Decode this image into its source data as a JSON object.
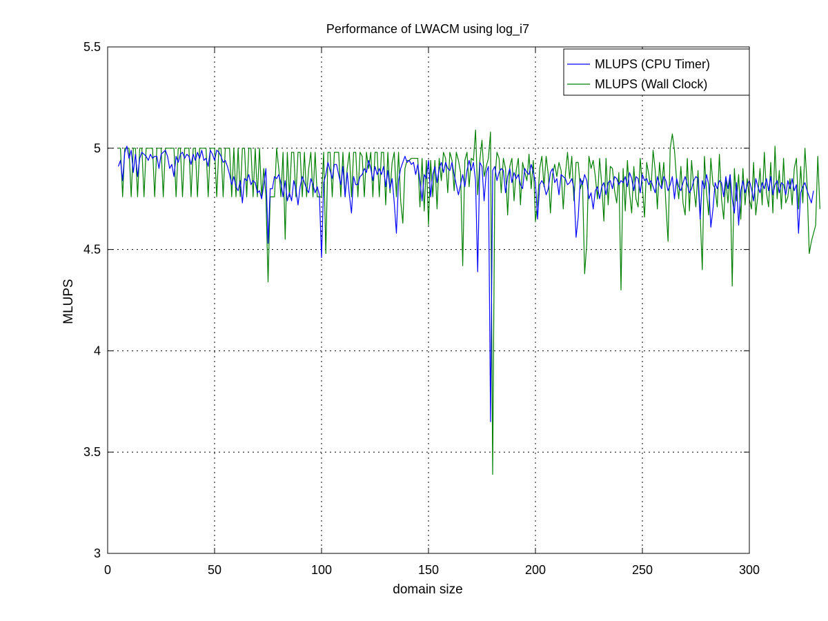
{
  "chart_data": {
    "type": "line",
    "title": "Performance of LWACM using log_i7",
    "xlabel": "domain size",
    "ylabel": "MLUPS",
    "xlim": [
      0,
      300
    ],
    "ylim": [
      3,
      5.5
    ],
    "x_ticks": [
      0,
      50,
      100,
      150,
      200,
      250,
      300
    ],
    "y_ticks": [
      3,
      3.5,
      4,
      4.5,
      5,
      5.5
    ],
    "x_tick_labels": [
      "0",
      "50",
      "100",
      "150",
      "200",
      "250",
      "300"
    ],
    "y_tick_labels": [
      "3",
      "3.5",
      "4",
      "4.5",
      "5",
      "5.5"
    ],
    "grid": true,
    "legend_position": "top-right",
    "x_start": 5,
    "x_step": 1,
    "series": [
      {
        "name": "MLUPS (CPU Timer)",
        "color": "#0000ff",
        "values": [
          4.91,
          4.94,
          4.84,
          4.98,
          5.01,
          4.95,
          4.99,
          4.88,
          4.97,
          4.86,
          4.95,
          4.98,
          4.97,
          4.96,
          4.94,
          4.97,
          4.95,
          4.96,
          4.96,
          4.9,
          4.97,
          4.98,
          4.99,
          4.96,
          4.9,
          4.92,
          4.86,
          4.96,
          4.93,
          4.97,
          4.98,
          4.95,
          4.97,
          4.96,
          4.92,
          4.97,
          4.94,
          4.98,
          4.95,
          4.99,
          4.94,
          4.95,
          4.91,
          4.99,
          4.97,
          4.94,
          4.99,
          4.98,
          4.96,
          4.93,
          4.94,
          4.91,
          4.87,
          4.82,
          4.86,
          4.81,
          4.79,
          4.84,
          4.73,
          4.85,
          4.84,
          4.87,
          4.82,
          4.84,
          4.83,
          4.78,
          4.79,
          4.75,
          4.82,
          4.9,
          4.53,
          4.8,
          4.8,
          4.86,
          4.85,
          4.87,
          4.83,
          4.76,
          4.84,
          4.74,
          4.78,
          4.74,
          4.84,
          4.8,
          4.72,
          4.81,
          4.86,
          4.83,
          4.8,
          4.78,
          4.85,
          4.82,
          4.78,
          4.81,
          4.77,
          4.46,
          4.83,
          4.87,
          4.93,
          4.89,
          4.85,
          4.92,
          4.92,
          4.87,
          4.82,
          4.91,
          4.76,
          4.88,
          4.77,
          4.68,
          4.86,
          4.82,
          4.82,
          4.86,
          4.87,
          4.9,
          4.88,
          4.94,
          4.9,
          4.84,
          4.91,
          4.87,
          4.9,
          4.87,
          4.91,
          4.81,
          4.89,
          4.8,
          4.85,
          4.73,
          4.58,
          4.84,
          4.9,
          4.93,
          4.96,
          4.93,
          4.94,
          4.92,
          4.93,
          4.87,
          4.92,
          4.84,
          4.74,
          4.87,
          4.85,
          4.94,
          4.76,
          4.87,
          4.91,
          4.83,
          4.9,
          4.93,
          4.88,
          4.93,
          4.9,
          4.89,
          4.93,
          4.87,
          4.82,
          4.77,
          4.82,
          4.87,
          4.81,
          4.89,
          4.94,
          4.89,
          4.93,
          4.84,
          4.39,
          4.93,
          4.91,
          4.74,
          4.88,
          4.91,
          3.65,
          4.89,
          4.91,
          4.84,
          4.88,
          4.9,
          4.89,
          4.78,
          4.86,
          4.9,
          4.83,
          4.88,
          4.85,
          4.87,
          4.82,
          4.8,
          4.9,
          4.88,
          4.87,
          4.92,
          4.88,
          4.83,
          4.65,
          4.82,
          4.84,
          4.82,
          4.77,
          4.8,
          4.88,
          4.9,
          4.83,
          4.85,
          4.77,
          4.87,
          4.86,
          4.85,
          4.82,
          4.83,
          4.85,
          4.8,
          4.56,
          4.66,
          4.85,
          4.82,
          4.87,
          4.84,
          4.75,
          4.78,
          4.7,
          4.79,
          4.81,
          4.75,
          4.81,
          4.83,
          4.77,
          4.83,
          4.84,
          4.8,
          4.86,
          4.85,
          4.82,
          4.84,
          4.83,
          4.86,
          4.81,
          4.88,
          4.85,
          4.79,
          4.86,
          4.85,
          4.78,
          4.87,
          4.84,
          4.85,
          4.82,
          4.84,
          4.81,
          4.78,
          4.86,
          4.82,
          4.8,
          4.86,
          4.84,
          4.79,
          4.82,
          4.86,
          4.75,
          4.85,
          4.81,
          4.79,
          4.83,
          4.86,
          4.82,
          4.78,
          4.8,
          4.84,
          4.86,
          4.85,
          4.65,
          4.84,
          4.8,
          4.87,
          4.82,
          4.61,
          4.7,
          4.83,
          4.8,
          4.84,
          4.83,
          4.76,
          4.86,
          4.8,
          4.87,
          4.75,
          4.68,
          4.83,
          4.62,
          4.79,
          4.84,
          4.78,
          4.82,
          4.84,
          4.8,
          4.74,
          4.85,
          4.81,
          4.78,
          4.83,
          4.8,
          4.85,
          4.79,
          4.86,
          4.77,
          4.82,
          4.84,
          4.78,
          4.83,
          4.82,
          4.77,
          4.84,
          4.8,
          4.85,
          4.79,
          4.82,
          4.58,
          4.78,
          4.81,
          4.83,
          4.79,
          4.76,
          4.73,
          4.79
        ]
      },
      {
        "name": "MLUPS (Wall Clock)",
        "color": "#007f00",
        "values": [
          5.0,
          5.0,
          4.76,
          5.0,
          5.0,
          5.0,
          4.76,
          5.0,
          5.0,
          4.76,
          5.0,
          5.0,
          4.76,
          5.0,
          5.0,
          5.0,
          5.0,
          4.76,
          5.0,
          5.0,
          5.0,
          4.76,
          5.0,
          5.0,
          5.0,
          5.0,
          5.0,
          4.76,
          5.0,
          5.0,
          4.76,
          5.0,
          5.0,
          5.0,
          4.76,
          5.0,
          5.0,
          4.76,
          5.0,
          5.0,
          5.0,
          5.0,
          4.76,
          5.0,
          5.0,
          5.0,
          4.76,
          5.0,
          5.0,
          4.76,
          5.0,
          5.0,
          5.0,
          4.76,
          5.0,
          4.76,
          5.0,
          4.76,
          5.0,
          5.0,
          4.76,
          5.0,
          5.0,
          4.76,
          5.0,
          4.76,
          5.0,
          4.76,
          4.9,
          4.76,
          4.34,
          4.76,
          4.76,
          4.76,
          5.0,
          4.9,
          4.76,
          4.98,
          4.55,
          4.98,
          4.76,
          4.98,
          4.98,
          4.76,
          4.98,
          4.98,
          4.76,
          4.98,
          4.76,
          4.9,
          4.98,
          4.76,
          4.98,
          4.76,
          4.76,
          4.76,
          4.98,
          4.48,
          4.98,
          4.98,
          4.76,
          4.98,
          4.98,
          4.98,
          4.76,
          4.98,
          4.76,
          4.9,
          4.98,
          4.76,
          4.98,
          4.98,
          4.76,
          4.98,
          4.96,
          4.76,
          4.98,
          4.9,
          4.98,
          4.76,
          4.98,
          4.98,
          4.76,
          4.98,
          4.98,
          4.72,
          4.98,
          4.78,
          4.93,
          4.98,
          4.76,
          4.98,
          4.74,
          4.63,
          4.9,
          4.94,
          4.94,
          4.95,
          4.95,
          4.95,
          4.95,
          4.71,
          4.95,
          4.69,
          4.94,
          4.62,
          4.94,
          4.76,
          4.94,
          4.7,
          4.95,
          4.84,
          4.98,
          4.95,
          4.78,
          4.98,
          4.94,
          4.79,
          4.98,
          4.94,
          4.88,
          4.42,
          4.94,
          4.98,
          4.81,
          4.95,
          4.94,
          5.09,
          4.77,
          4.94,
          5.04,
          4.86,
          4.91,
          4.95,
          5.08,
          3.39,
          4.84,
          4.98,
          4.95,
          4.78,
          4.95,
          4.9,
          4.67,
          4.91,
          4.95,
          4.74,
          4.89,
          4.95,
          4.72,
          4.93,
          4.88,
          4.84,
          4.97,
          4.8,
          4.94,
          4.64,
          4.73,
          4.9,
          4.96,
          4.81,
          4.96,
          4.87,
          4.68,
          4.87,
          4.92,
          4.86,
          4.93,
          4.89,
          4.7,
          4.87,
          4.98,
          4.85,
          4.96,
          4.74,
          4.93,
          4.93,
          4.8,
          4.84,
          4.38,
          4.53,
          4.96,
          4.9,
          4.94,
          4.86,
          4.75,
          4.95,
          4.82,
          4.64,
          4.95,
          4.72,
          4.91,
          4.9,
          4.79,
          4.73,
          4.88,
          4.3,
          4.9,
          4.69,
          4.94,
          4.78,
          4.68,
          4.91,
          4.75,
          4.71,
          4.95,
          4.81,
          4.66,
          4.93,
          4.87,
          4.79,
          4.99,
          4.89,
          4.7,
          4.93,
          4.81,
          4.93,
          4.72,
          4.54,
          5.0,
          5.07,
          4.99,
          4.84,
          4.75,
          4.91,
          4.73,
          4.67,
          4.95,
          4.69,
          4.94,
          4.81,
          4.71,
          4.89,
          4.68,
          4.4,
          4.96,
          4.78,
          4.67,
          4.95,
          4.82,
          4.8,
          4.71,
          4.97,
          4.75,
          4.65,
          4.85,
          4.73,
          4.87,
          4.32,
          4.9,
          4.74,
          4.87,
          4.65,
          4.9,
          4.72,
          4.85,
          4.75,
          4.7,
          4.93,
          4.67,
          4.77,
          4.9,
          4.72,
          4.98,
          4.78,
          4.71,
          4.93,
          4.68,
          5.01,
          4.75,
          4.89,
          4.7,
          4.95,
          4.73,
          4.76,
          4.85,
          4.72,
          4.9,
          4.95,
          4.7,
          4.91,
          4.73,
          5.0,
          4.82,
          4.48,
          4.54,
          4.58,
          4.62,
          4.96,
          4.7
        ]
      }
    ]
  }
}
